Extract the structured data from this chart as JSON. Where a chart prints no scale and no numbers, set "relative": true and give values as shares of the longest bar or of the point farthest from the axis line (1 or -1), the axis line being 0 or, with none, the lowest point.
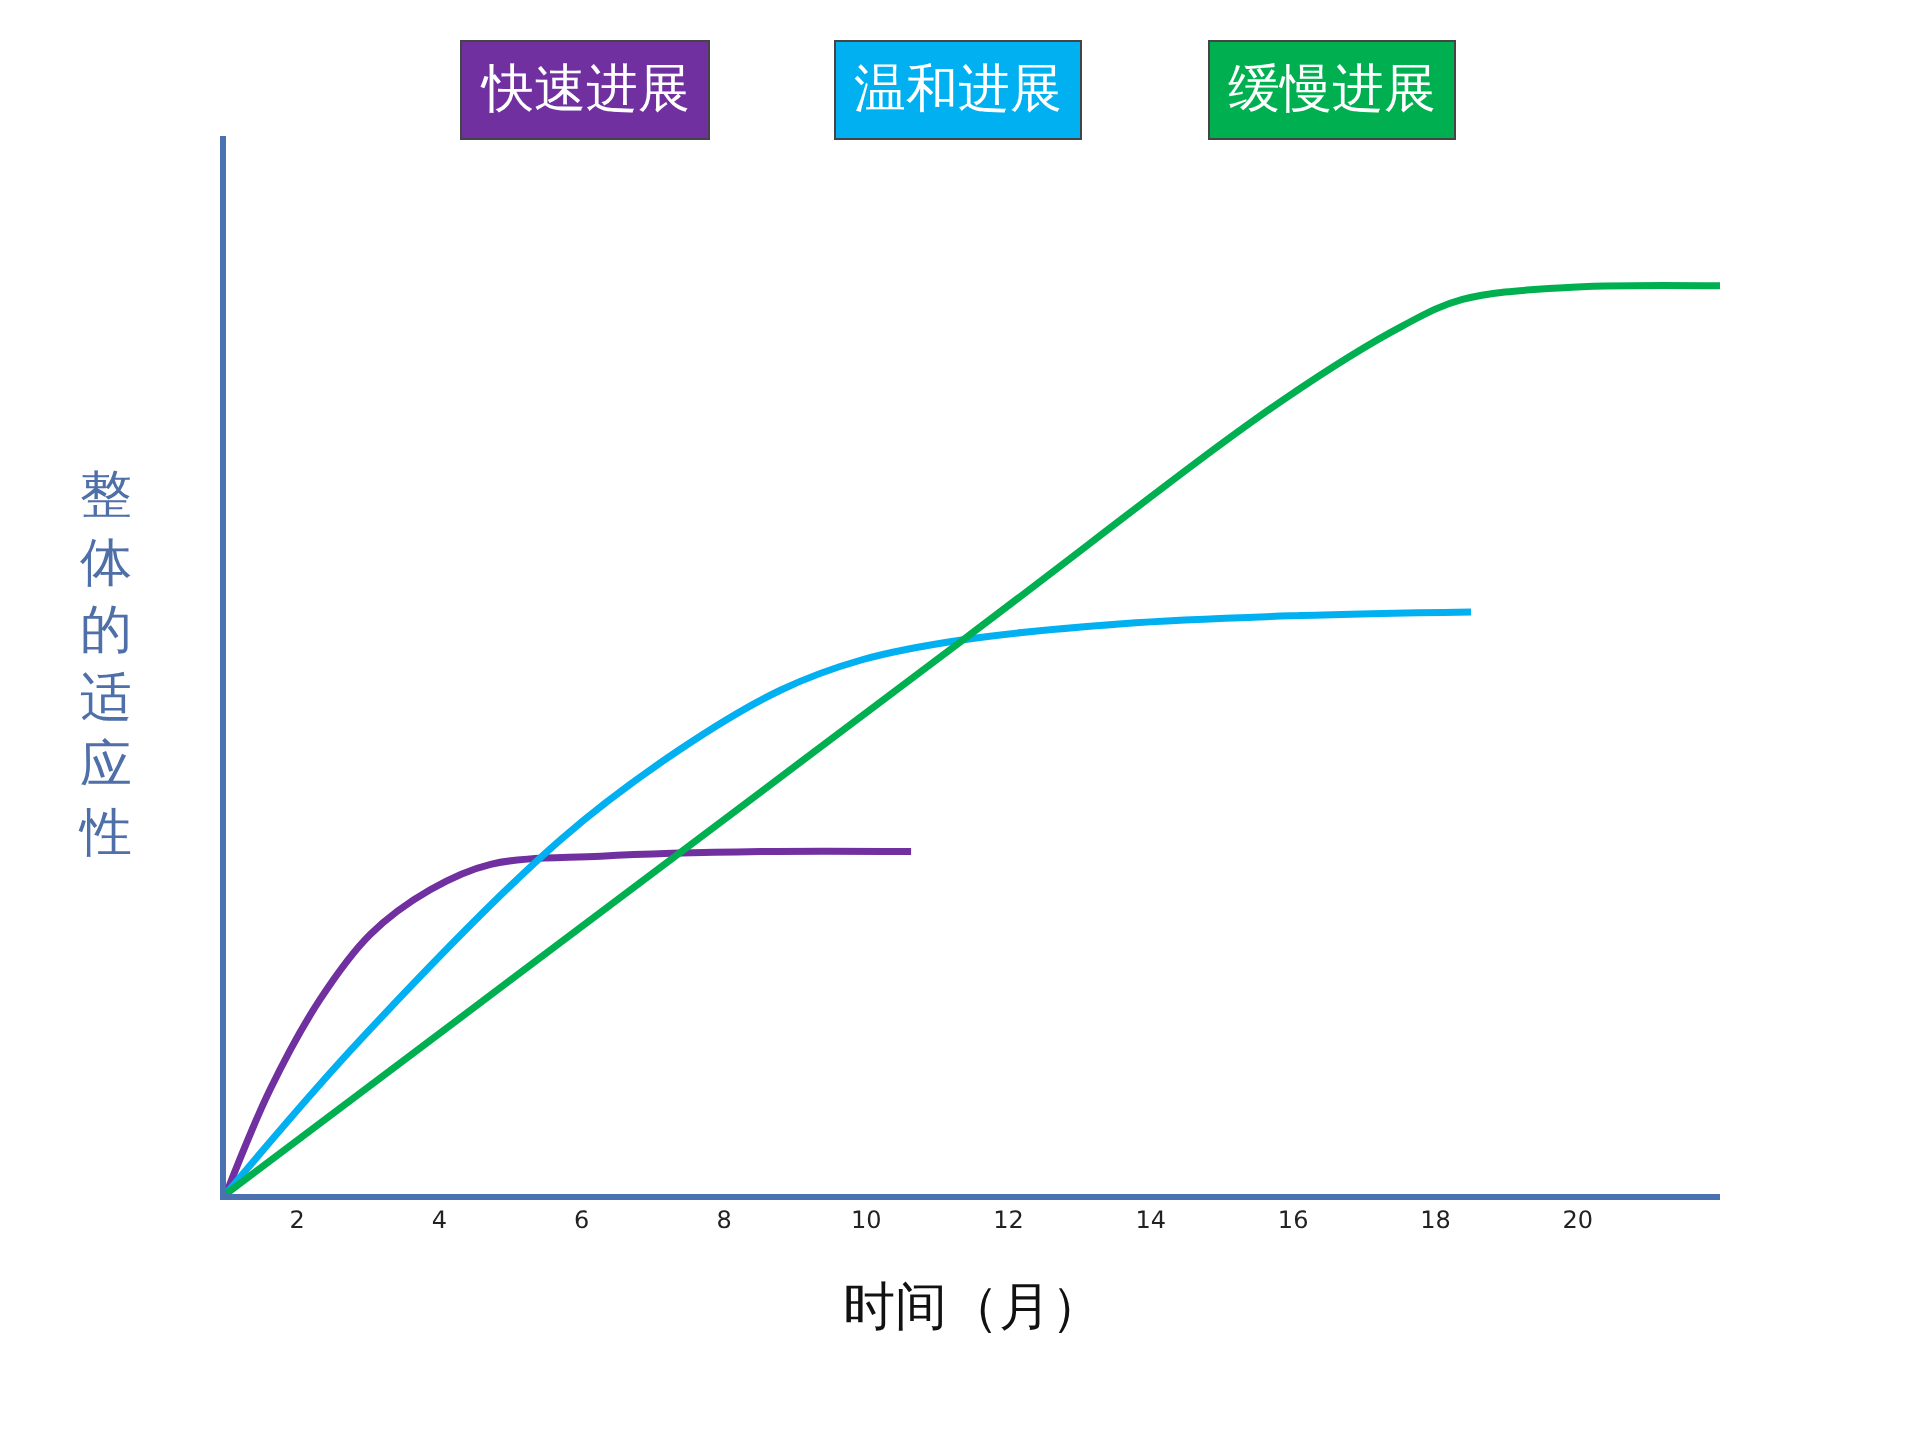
{
  "chart_data": {
    "type": "line",
    "relative": true,
    "xlabel": "时间（月）",
    "ylabel": "整体的适应性",
    "xlim": [
      1,
      22
    ],
    "xticks": [
      2,
      4,
      6,
      8,
      10,
      12,
      14,
      16,
      18,
      20
    ],
    "legend": "top",
    "marker": "none",
    "line_style": "solid",
    "series": [
      {
        "name": "快速进展",
        "color": "#7030a0",
        "x": [
          1,
          1.62,
          2.32,
          3.03,
          3.87,
          4.72,
          6.27,
          8.52,
          10.63
        ],
        "values": [
          0,
          0.115,
          0.214,
          0.286,
          0.335,
          0.363,
          0.372,
          0.377,
          0.377
        ]
      },
      {
        "name": "温和进展",
        "color": "#00b0f0",
        "x": [
          1,
          2.89,
          5.7,
          7.39,
          8.8,
          9.93,
          11.34,
          13.6,
          16.1,
          18.5
        ],
        "values": [
          0,
          0.17,
          0.39,
          0.49,
          0.555,
          0.588,
          0.61,
          0.628,
          0.637,
          0.641
        ]
      },
      {
        "name": "缓慢进展",
        "color": "#00b050",
        "x": [
          1,
          11.34,
          15.85,
          17.54,
          18.38,
          19.8,
          22.0
        ],
        "values": [
          0,
          0.609,
          0.874,
          0.956,
          0.985,
          0.998,
          1
        ]
      }
    ]
  }
}
